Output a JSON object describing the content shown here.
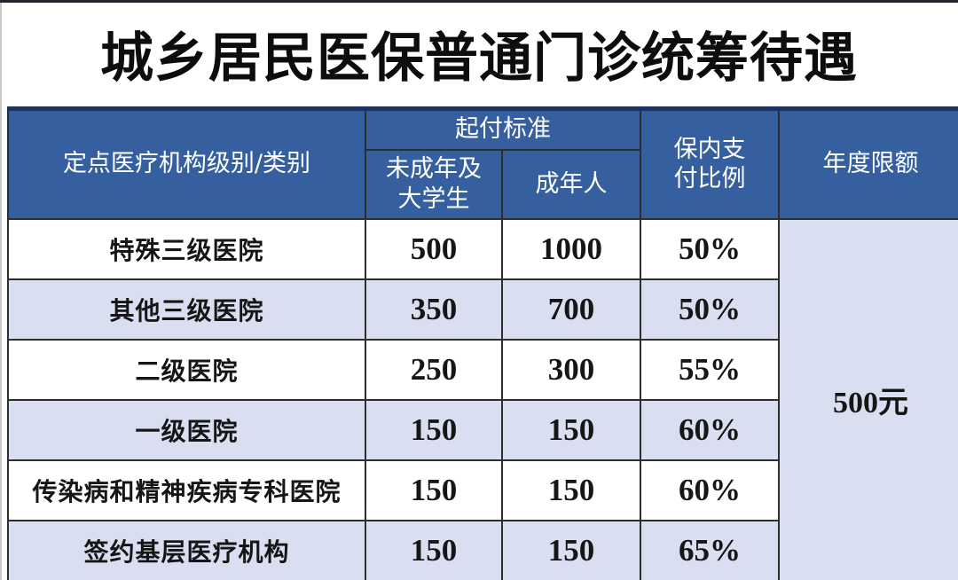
{
  "title": "城乡居民医保普通门诊统筹待遇",
  "colors": {
    "header_bg": "#355f9e",
    "header_top_border": "#1c3360",
    "stripe_bg": "#d9dff1",
    "row_white_bg": "#ffffff",
    "grid_border": "#2e2e2e",
    "header_text": "#ffffff",
    "body_text": "#161616"
  },
  "table": {
    "headers": {
      "facility": "定点医疗机构级别/类别",
      "deductible_group": "起付标准",
      "deductible_minor": "未成年及\n大学生",
      "deductible_adult": "成年人",
      "pay_ratio": "保内支\n付比例",
      "annual_limit": "年度限额"
    },
    "rows": [
      {
        "facility": "特殊三级医院",
        "minor": "500",
        "adult": "1000",
        "ratio": "50%"
      },
      {
        "facility": "其他三级医院",
        "minor": "350",
        "adult": "700",
        "ratio": "50%"
      },
      {
        "facility": "二级医院",
        "minor": "250",
        "adult": "300",
        "ratio": "55%"
      },
      {
        "facility": "一级医院",
        "minor": "150",
        "adult": "150",
        "ratio": "60%"
      },
      {
        "facility": "传染病和精神疾病专科医院",
        "minor": "150",
        "adult": "150",
        "ratio": "60%"
      },
      {
        "facility": "签约基层医疗机构",
        "minor": "150",
        "adult": "150",
        "ratio": "65%"
      }
    ],
    "annual_limit_value": "500元"
  },
  "chart_data": {
    "type": "table",
    "title": "城乡居民医保普通门诊统筹待遇",
    "columns": [
      "定点医疗机构级别/类别",
      "起付标准-未成年及大学生",
      "起付标准-成年人",
      "保内支付比例",
      "年度限额"
    ],
    "rows": [
      [
        "特殊三级医院",
        500,
        1000,
        "50%",
        "500元"
      ],
      [
        "其他三级医院",
        350,
        700,
        "50%",
        "500元"
      ],
      [
        "二级医院",
        250,
        300,
        "55%",
        "500元"
      ],
      [
        "一级医院",
        150,
        150,
        "60%",
        "500元"
      ],
      [
        "传染病和精神疾病专科医院",
        150,
        150,
        "60%",
        "500元"
      ],
      [
        "签约基层医疗机构",
        150,
        150,
        "65%",
        "500元"
      ]
    ],
    "notes": "年度限额为跨所有机构级别的合并单元格，值为500元"
  }
}
